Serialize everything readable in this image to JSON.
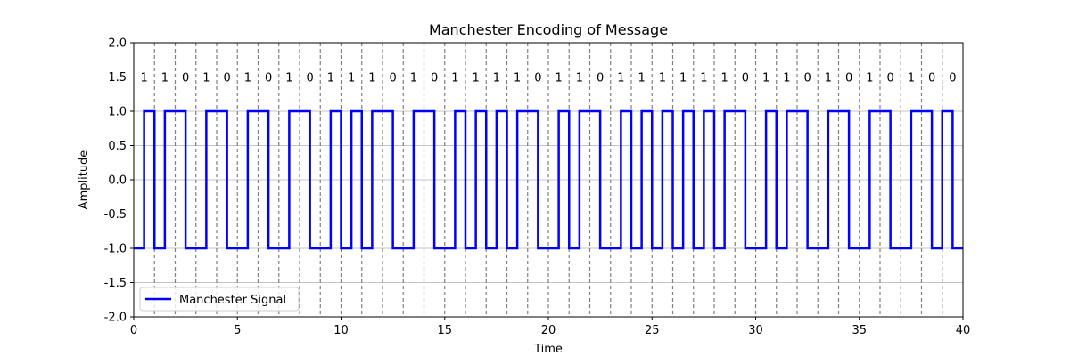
{
  "chart_data": {
    "type": "line",
    "title": "Manchester Encoding of Message",
    "xlabel": "Time",
    "ylabel": "Amplitude",
    "xlim": [
      0,
      40
    ],
    "ylim": [
      -2.0,
      2.0
    ],
    "xticks": [
      0,
      5,
      10,
      15,
      20,
      25,
      30,
      35,
      40
    ],
    "yticks": [
      -2.0,
      -1.5,
      -1.0,
      -0.5,
      0.0,
      0.5,
      1.0,
      1.5,
      2.0
    ],
    "xtick_labels": [
      "0",
      "5",
      "10",
      "15",
      "20",
      "25",
      "30",
      "35",
      "40"
    ],
    "ytick_labels": [
      "-2.0",
      "-1.5",
      "-1.0",
      "-0.5",
      "0.0",
      "0.5",
      "1.0",
      "1.5",
      "2.0"
    ],
    "grid": "horizontal",
    "bit_boundaries": [
      1,
      2,
      3,
      4,
      5,
      6,
      7,
      8,
      9,
      10,
      11,
      12,
      13,
      14,
      15,
      16,
      17,
      18,
      19,
      20,
      21,
      22,
      23,
      24,
      25,
      26,
      27,
      28,
      29,
      30,
      31,
      32,
      33,
      34,
      35,
      36,
      37,
      38,
      39
    ],
    "bits": [
      "1",
      "1",
      "0",
      "1",
      "0",
      "1",
      "0",
      "1",
      "0",
      "1",
      "1",
      "1",
      "0",
      "1",
      "0",
      "1",
      "1",
      "1",
      "1",
      "0",
      "1",
      "1",
      "0",
      "1",
      "1",
      "1",
      "1",
      "1",
      "1",
      "0",
      "1",
      "1",
      "0",
      "1",
      "0",
      "1",
      "0",
      "1",
      "0",
      "0"
    ],
    "encoding": "bit 1: -1 then +1; bit 0: +1 then -1",
    "series": [
      {
        "name": "Manchester Signal",
        "color": "#0000ff"
      }
    ],
    "legend_position": "lower-left"
  }
}
